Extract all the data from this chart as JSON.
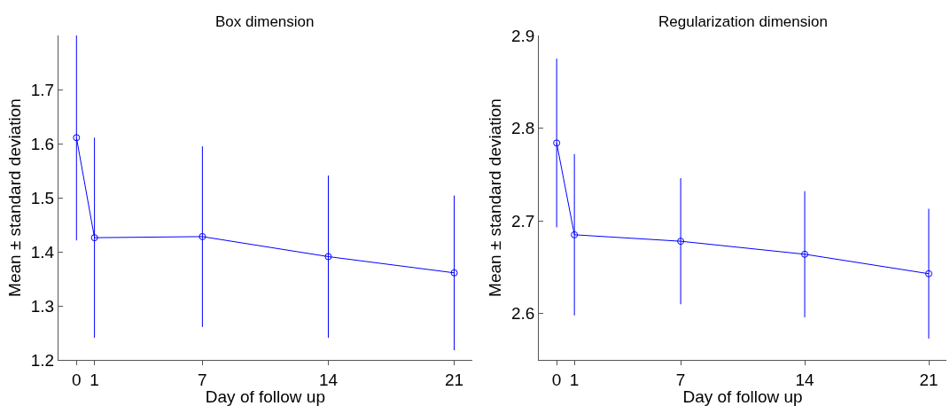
{
  "chart_data": [
    {
      "type": "line",
      "title": "Box dimension",
      "xlabel": "Day of follow up",
      "ylabel": "Mean ± standard deviation",
      "x": [
        0,
        1,
        7,
        14,
        21
      ],
      "series": [
        {
          "color": "#0000ff",
          "values": [
            1.611,
            1.426,
            1.428,
            1.391,
            1.361
          ],
          "errors": [
            0.19,
            0.185,
            0.167,
            0.15,
            0.143
          ]
        }
      ],
      "xlim": [
        -1,
        22
      ],
      "xticks": [
        0,
        1,
        7,
        14,
        21
      ],
      "ylim": [
        1.2,
        1.8
      ],
      "yticks": [
        1.2,
        1.3,
        1.4,
        1.5,
        1.6,
        1.7
      ],
      "marker": "circle",
      "line_style": "solid"
    },
    {
      "type": "line",
      "title": "Regularization dimension",
      "xlabel": "Day of follow up",
      "ylabel": "Mean ± standard deviation",
      "x": [
        0,
        1,
        7,
        14,
        21
      ],
      "series": [
        {
          "color": "#0000ff",
          "values": [
            2.784,
            2.685,
            2.678,
            2.664,
            2.643
          ],
          "errors": [
            0.091,
            0.087,
            0.068,
            0.068,
            0.07
          ]
        }
      ],
      "xlim": [
        -1,
        22
      ],
      "xticks": [
        0,
        1,
        7,
        14,
        21
      ],
      "ylim": [
        2.55,
        2.9
      ],
      "yticks": [
        2.6,
        2.7,
        2.8,
        2.9
      ],
      "marker": "circle",
      "line_style": "solid"
    }
  ]
}
